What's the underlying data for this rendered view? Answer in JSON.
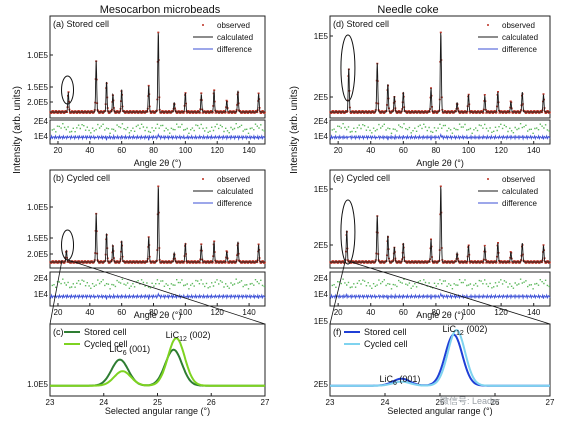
{
  "colors": {
    "observed": "#c0392b",
    "calculated": "#1a1a1a",
    "difference": "#3b4fd6",
    "diff_green": "#5cb85c",
    "stored_left": "#2e7d32",
    "cycled_left": "#7ed321",
    "stored_right": "#1f3fd6",
    "cycled_right": "#7fd3ef"
  },
  "watermark": "微信号: Leader",
  "columns": [
    {
      "title": "Mesocarbon microbeads"
    },
    {
      "title": "Needle coke"
    }
  ],
  "shared": {
    "ylabel": "Intensity (arb. units)",
    "xlabel_full": "Angle 2θ (°)",
    "xlabel_zoom": "Selected angular range (°)"
  },
  "chart_data": [
    {
      "id": "a",
      "type": "line",
      "title": "(a) Stored cell",
      "legend": [
        "observed",
        "calculated",
        "difference"
      ],
      "xlim": [
        15,
        150
      ],
      "x_ticks": [
        "20",
        "40",
        "60",
        "80",
        "100",
        "120",
        "140"
      ],
      "y_ticks": [
        "1.0E5",
        "1.5E5",
        "2.0E5"
      ],
      "diff_ticks": [
        "2E4",
        "1E4"
      ],
      "peaks": [
        [
          26.5,
          0.25
        ],
        [
          44,
          0.65
        ],
        [
          50.5,
          0.38
        ],
        [
          54.5,
          0.22
        ],
        [
          60,
          0.28
        ],
        [
          77,
          0.33
        ],
        [
          83,
          1.0
        ],
        [
          93,
          0.12
        ],
        [
          100,
          0.24
        ],
        [
          110,
          0.22
        ],
        [
          118,
          0.27
        ],
        [
          126,
          0.14
        ],
        [
          133,
          0.27
        ],
        [
          146,
          0.23
        ]
      ],
      "xlabel": "Angle 2θ (°)"
    },
    {
      "id": "b",
      "type": "line",
      "title": "(b) Cycled cell",
      "legend": [
        "observed",
        "calculated",
        "difference"
      ],
      "xlim": [
        15,
        150
      ],
      "x_ticks": [
        "20",
        "40",
        "60",
        "80",
        "100",
        "120",
        "140"
      ],
      "y_ticks": [
        "1.0E5",
        "1.5E5",
        "2.0E5"
      ],
      "diff_ticks": [
        "2E4",
        "1E4"
      ],
      "peaks": [
        [
          25.3,
          0.15
        ],
        [
          44,
          0.65
        ],
        [
          50.5,
          0.38
        ],
        [
          54.5,
          0.22
        ],
        [
          60,
          0.28
        ],
        [
          77,
          0.33
        ],
        [
          83,
          1.0
        ],
        [
          93,
          0.12
        ],
        [
          100,
          0.24
        ],
        [
          110,
          0.22
        ],
        [
          118,
          0.27
        ],
        [
          126,
          0.14
        ],
        [
          133,
          0.27
        ],
        [
          146,
          0.23
        ]
      ],
      "xlabel": "Angle 2θ (°)"
    },
    {
      "id": "c",
      "type": "line",
      "title": "(c)",
      "xlim": [
        23,
        27
      ],
      "x_ticks": [
        "23",
        "24",
        "25",
        "26",
        "27"
      ],
      "y_ticks": [
        "1.0E5"
      ],
      "series": [
        {
          "name": "Stored cell",
          "peaks": [
            [
              24.3,
              0.45
            ],
            [
              25.3,
              0.62
            ]
          ]
        },
        {
          "name": "Cycled cell",
          "peaks": [
            [
              24.35,
              0.25
            ],
            [
              25.35,
              0.82
            ]
          ]
        }
      ],
      "annotations": [
        {
          "text": "LiC",
          "sub": "12",
          "suffix": " (002)",
          "x": 25.3
        },
        {
          "text": "LiC",
          "sub": "6",
          "suffix": " (001)",
          "x": 24.25
        }
      ],
      "xlabel": "Selected angular range (°)"
    },
    {
      "id": "d",
      "type": "line",
      "title": "(d) Stored cell",
      "legend": [
        "observed",
        "calculated",
        "difference"
      ],
      "xlim": [
        15,
        150
      ],
      "x_ticks": [
        "20",
        "40",
        "60",
        "80",
        "100",
        "120",
        "140"
      ],
      "y_ticks": [
        "1E5",
        "2E5"
      ],
      "diff_ticks": [
        "2E4",
        "1E4"
      ],
      "peaks": [
        [
          26.5,
          0.55
        ],
        [
          44,
          0.62
        ],
        [
          50.5,
          0.35
        ],
        [
          54.5,
          0.2
        ],
        [
          60,
          0.25
        ],
        [
          77,
          0.3
        ],
        [
          83,
          1.0
        ],
        [
          93,
          0.12
        ],
        [
          100,
          0.22
        ],
        [
          110,
          0.2
        ],
        [
          118,
          0.25
        ],
        [
          126,
          0.13
        ],
        [
          133,
          0.25
        ],
        [
          146,
          0.22
        ]
      ],
      "xlabel": "Angle 2θ (°)"
    },
    {
      "id": "e",
      "type": "line",
      "title": "(e) Cycled cell",
      "legend": [
        "observed",
        "calculated",
        "difference"
      ],
      "xlim": [
        15,
        150
      ],
      "x_ticks": [
        "20",
        "40",
        "60",
        "80",
        "100",
        "120",
        "140"
      ],
      "y_ticks": [
        "1E5",
        "2E5"
      ],
      "diff_ticks": [
        "2E4",
        "1E4"
      ],
      "peaks": [
        [
          25.3,
          0.42
        ],
        [
          44,
          0.62
        ],
        [
          50.5,
          0.35
        ],
        [
          54.5,
          0.2
        ],
        [
          60,
          0.25
        ],
        [
          77,
          0.3
        ],
        [
          83,
          1.0
        ],
        [
          93,
          0.12
        ],
        [
          100,
          0.22
        ],
        [
          110,
          0.2
        ],
        [
          118,
          0.25
        ],
        [
          126,
          0.13
        ],
        [
          133,
          0.25
        ],
        [
          146,
          0.22
        ]
      ],
      "xlabel": "Angle 2θ (°)"
    },
    {
      "id": "f",
      "type": "line",
      "title": "(f)",
      "xlim": [
        23,
        27
      ],
      "x_ticks": [
        "23",
        "24",
        "25",
        "26",
        "27"
      ],
      "y_ticks": [
        "1E5",
        "2E5"
      ],
      "series": [
        {
          "name": "Stored cell",
          "peaks": [
            [
              24.3,
              0.12
            ],
            [
              25.25,
              0.88
            ]
          ]
        },
        {
          "name": "Cycled cell",
          "peaks": [
            [
              24.3,
              0.07
            ],
            [
              25.3,
              0.96
            ]
          ]
        }
      ],
      "annotations": [
        {
          "text": "LiC",
          "sub": "12",
          "suffix": " (002)",
          "x": 25.3
        },
        {
          "text": "LiC",
          "sub": "6",
          "suffix": " (001)",
          "x": 24.3
        }
      ],
      "xlabel": "Selected angular range (°)"
    }
  ]
}
